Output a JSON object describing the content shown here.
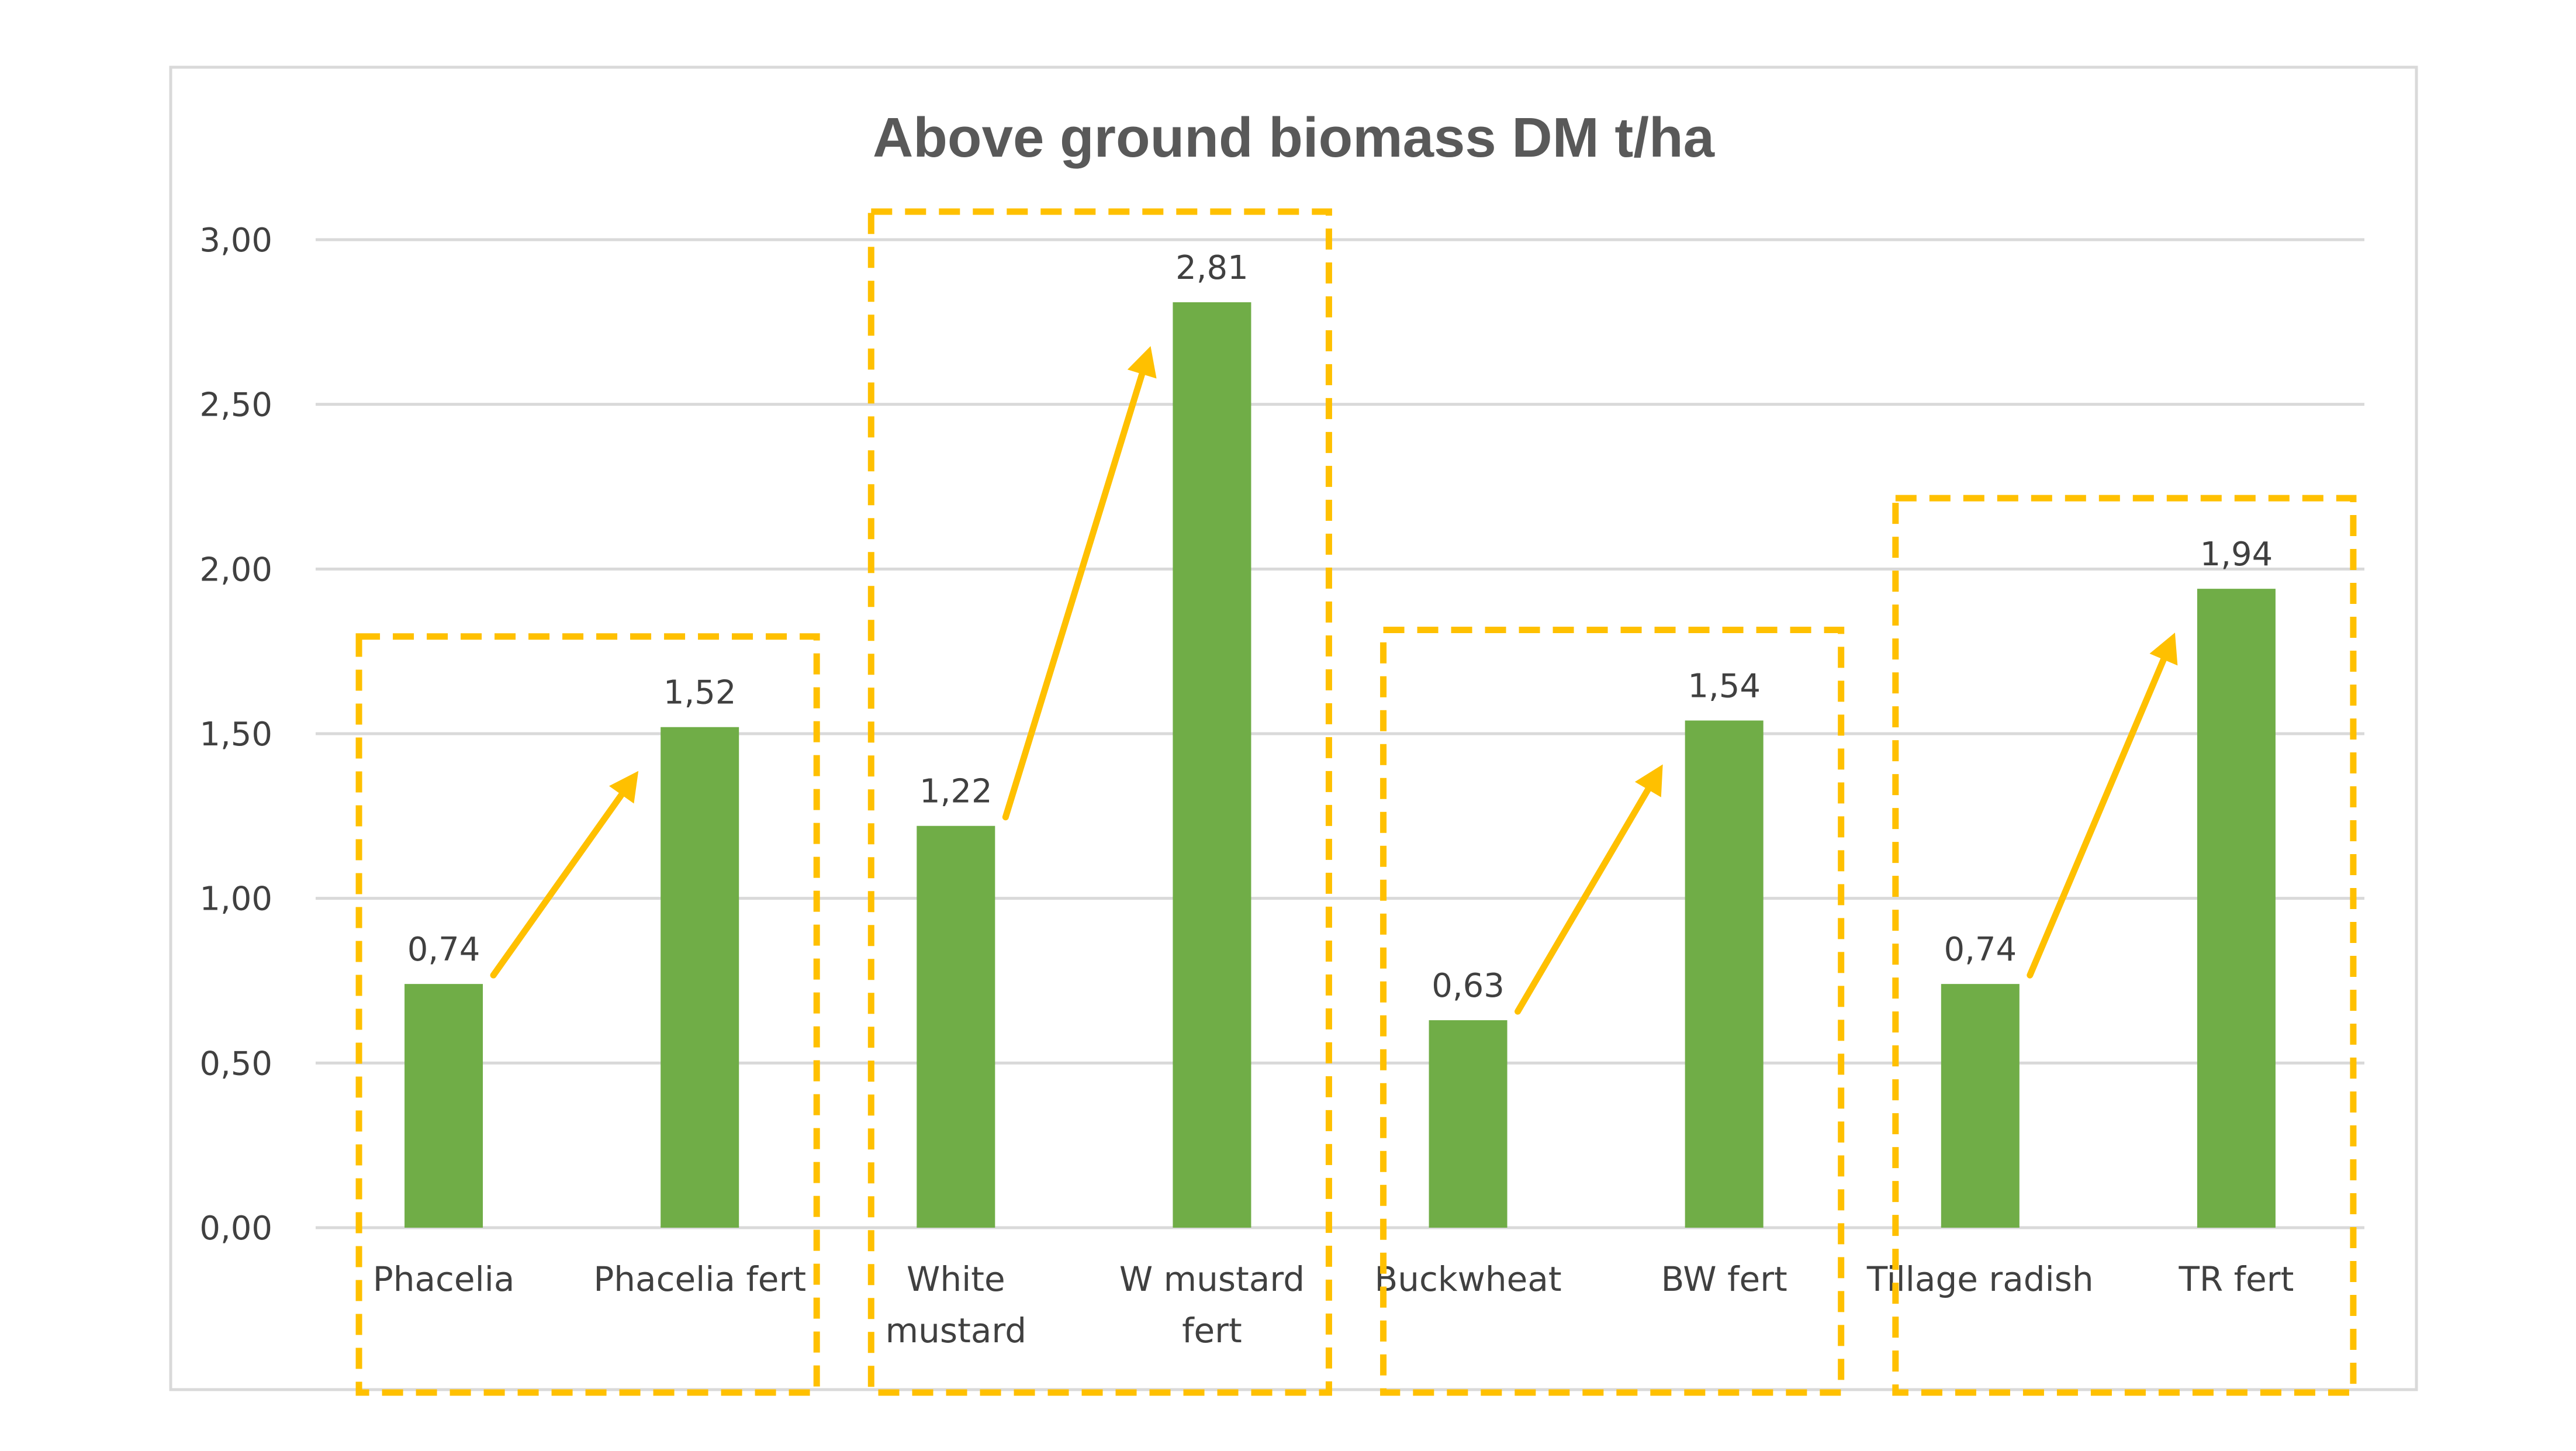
{
  "chart_data": {
    "type": "bar",
    "title": "Above ground biomass DM t/ha",
    "xlabel": "",
    "ylabel": "",
    "ylim": [
      0,
      3
    ],
    "yticks": [
      "0,00",
      "0,50",
      "1,00",
      "1,50",
      "2,00",
      "2,50",
      "3,00"
    ],
    "ytick_values": [
      0,
      0.5,
      1,
      1.5,
      2,
      2.5,
      3
    ],
    "grid": true,
    "legend": "none",
    "categories": [
      [
        "Phacelia"
      ],
      [
        "Phacelia fert"
      ],
      [
        "White",
        "mustard"
      ],
      [
        "W mustard",
        "fert"
      ],
      [
        "Buckwheat"
      ],
      [
        "BW fert"
      ],
      [
        "Tillage radish"
      ],
      [
        "TR fert"
      ]
    ],
    "values": [
      0.74,
      1.52,
      1.22,
      2.81,
      0.63,
      1.54,
      0.74,
      1.94
    ],
    "value_labels": [
      "0,74",
      "1,52",
      "1,22",
      "2,81",
      "0,63",
      "1,54",
      "0,74",
      "1,94"
    ],
    "annotations": {
      "groups": [
        [
          0,
          1
        ],
        [
          2,
          3
        ],
        [
          4,
          5
        ],
        [
          6,
          7
        ]
      ],
      "arrows": [
        [
          0,
          1
        ],
        [
          2,
          3
        ],
        [
          4,
          5
        ],
        [
          6,
          7
        ]
      ]
    },
    "colors": {
      "bar": "#70AD47",
      "annotation": "#FFC000",
      "grid": "#D9D9D9",
      "border": "#D9D9D9"
    }
  }
}
